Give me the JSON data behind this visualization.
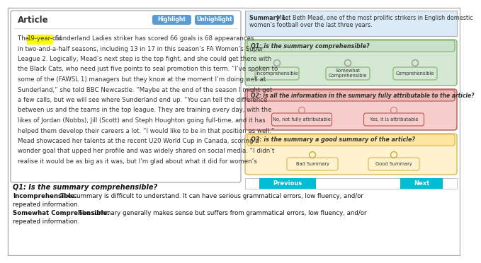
{
  "article_title": "Article",
  "article_lines": [
    "The 19-year-old Sunderland Ladies striker has scored 66 goals is 68 appearances",
    "in two-and-a-half seasons, including 13 in 17 in this season’s FA Women’s Super",
    "League 2. Logically, Mead’s next step is the top fight, and she could get there with",
    "the Black Cats, who need just five points to seal promotion this term. “I’ve spoken to",
    "some of the (FAWSL 1) managers but they know at the moment I’m doing well at",
    "Sunderland,” she told BBC Newcastle. “Maybe at the end of the season I might get",
    "a few calls, but we will see where Sunderland end up. “You can tell the difference",
    "between us and the teams in the top league. They are training every day, with the",
    "likes of Jordan (Nobbs), Jill (Scott) and Steph Houghton going full-time, and it has",
    "helped them develop their careers a lot. “I would like to be in that position as well.”",
    "Mead showcased her talents at the recent U20 World Cup in Canada, scoring a",
    "wonder goal that upped her profile and was widely shared on social media. “I didn’t",
    "realise it would be as big as it was, but I’m glad about what it did for women’s"
  ],
  "highlight_word": "19-year-old",
  "highlight_color": "#FFFF00",
  "btn_highlight_color": "#5b9bd5",
  "summary_bg": "#daeaf6",
  "summary_bold": "Summary 1:",
  "summary_rest": " Meet Beth Mead, one of the most prolific strikers in English domestic women’s football over the last three years.",
  "q1_bg": "#d5e8d4",
  "q1_border": "#82b366",
  "q1_label_bg": "#c8e1c8",
  "q1_text": "Q1: is the summary comprehensible?",
  "q1_opts": [
    "Incomprehensible",
    "Somewhat\nComprehensible",
    "Comprehensible"
  ],
  "q1_opt_bg": "#d5e8d4",
  "q2_bg": "#f8cecc",
  "q2_border": "#b85450",
  "q2_label_bg": "#f0b8b5",
  "q2_text": "Q2: is all the information in the summary fully attributable to the article?",
  "q2_opts": [
    "No, not fully attributable",
    "Yes, it is attributable"
  ],
  "q2_opt_bg": "#f8cecc",
  "q3_bg": "#fff2cc",
  "q3_border": "#d6b656",
  "q3_label_bg": "#ffe6a0",
  "q3_text": "Q3: is the summary a good summary of the article?",
  "q3_opts": [
    "Bad Summary",
    "Good Summary"
  ],
  "q3_opt_bg": "#fff2cc",
  "nav_color": "#00bcd4",
  "outer_border": "#b0b0b0",
  "white": "#ffffff",
  "light_gray_bg": "#f5f5f5",
  "bottom_title": "Q1: Is the summary comprehensible?",
  "bottom_lines": [
    {
      "bold": "Incomprehensible:",
      "normal": " The summary is difficult to understand. It can have serious grammatical errors, low fluency, and/or"
    },
    {
      "bold": "",
      "normal": "repeated information."
    },
    {
      "bold": "Somewhat Comprehensible:",
      "normal": " The summary generally makes sense but suffers from grammatical errors, low fluency, and/or"
    },
    {
      "bold": "",
      "normal": "repeated information."
    }
  ]
}
